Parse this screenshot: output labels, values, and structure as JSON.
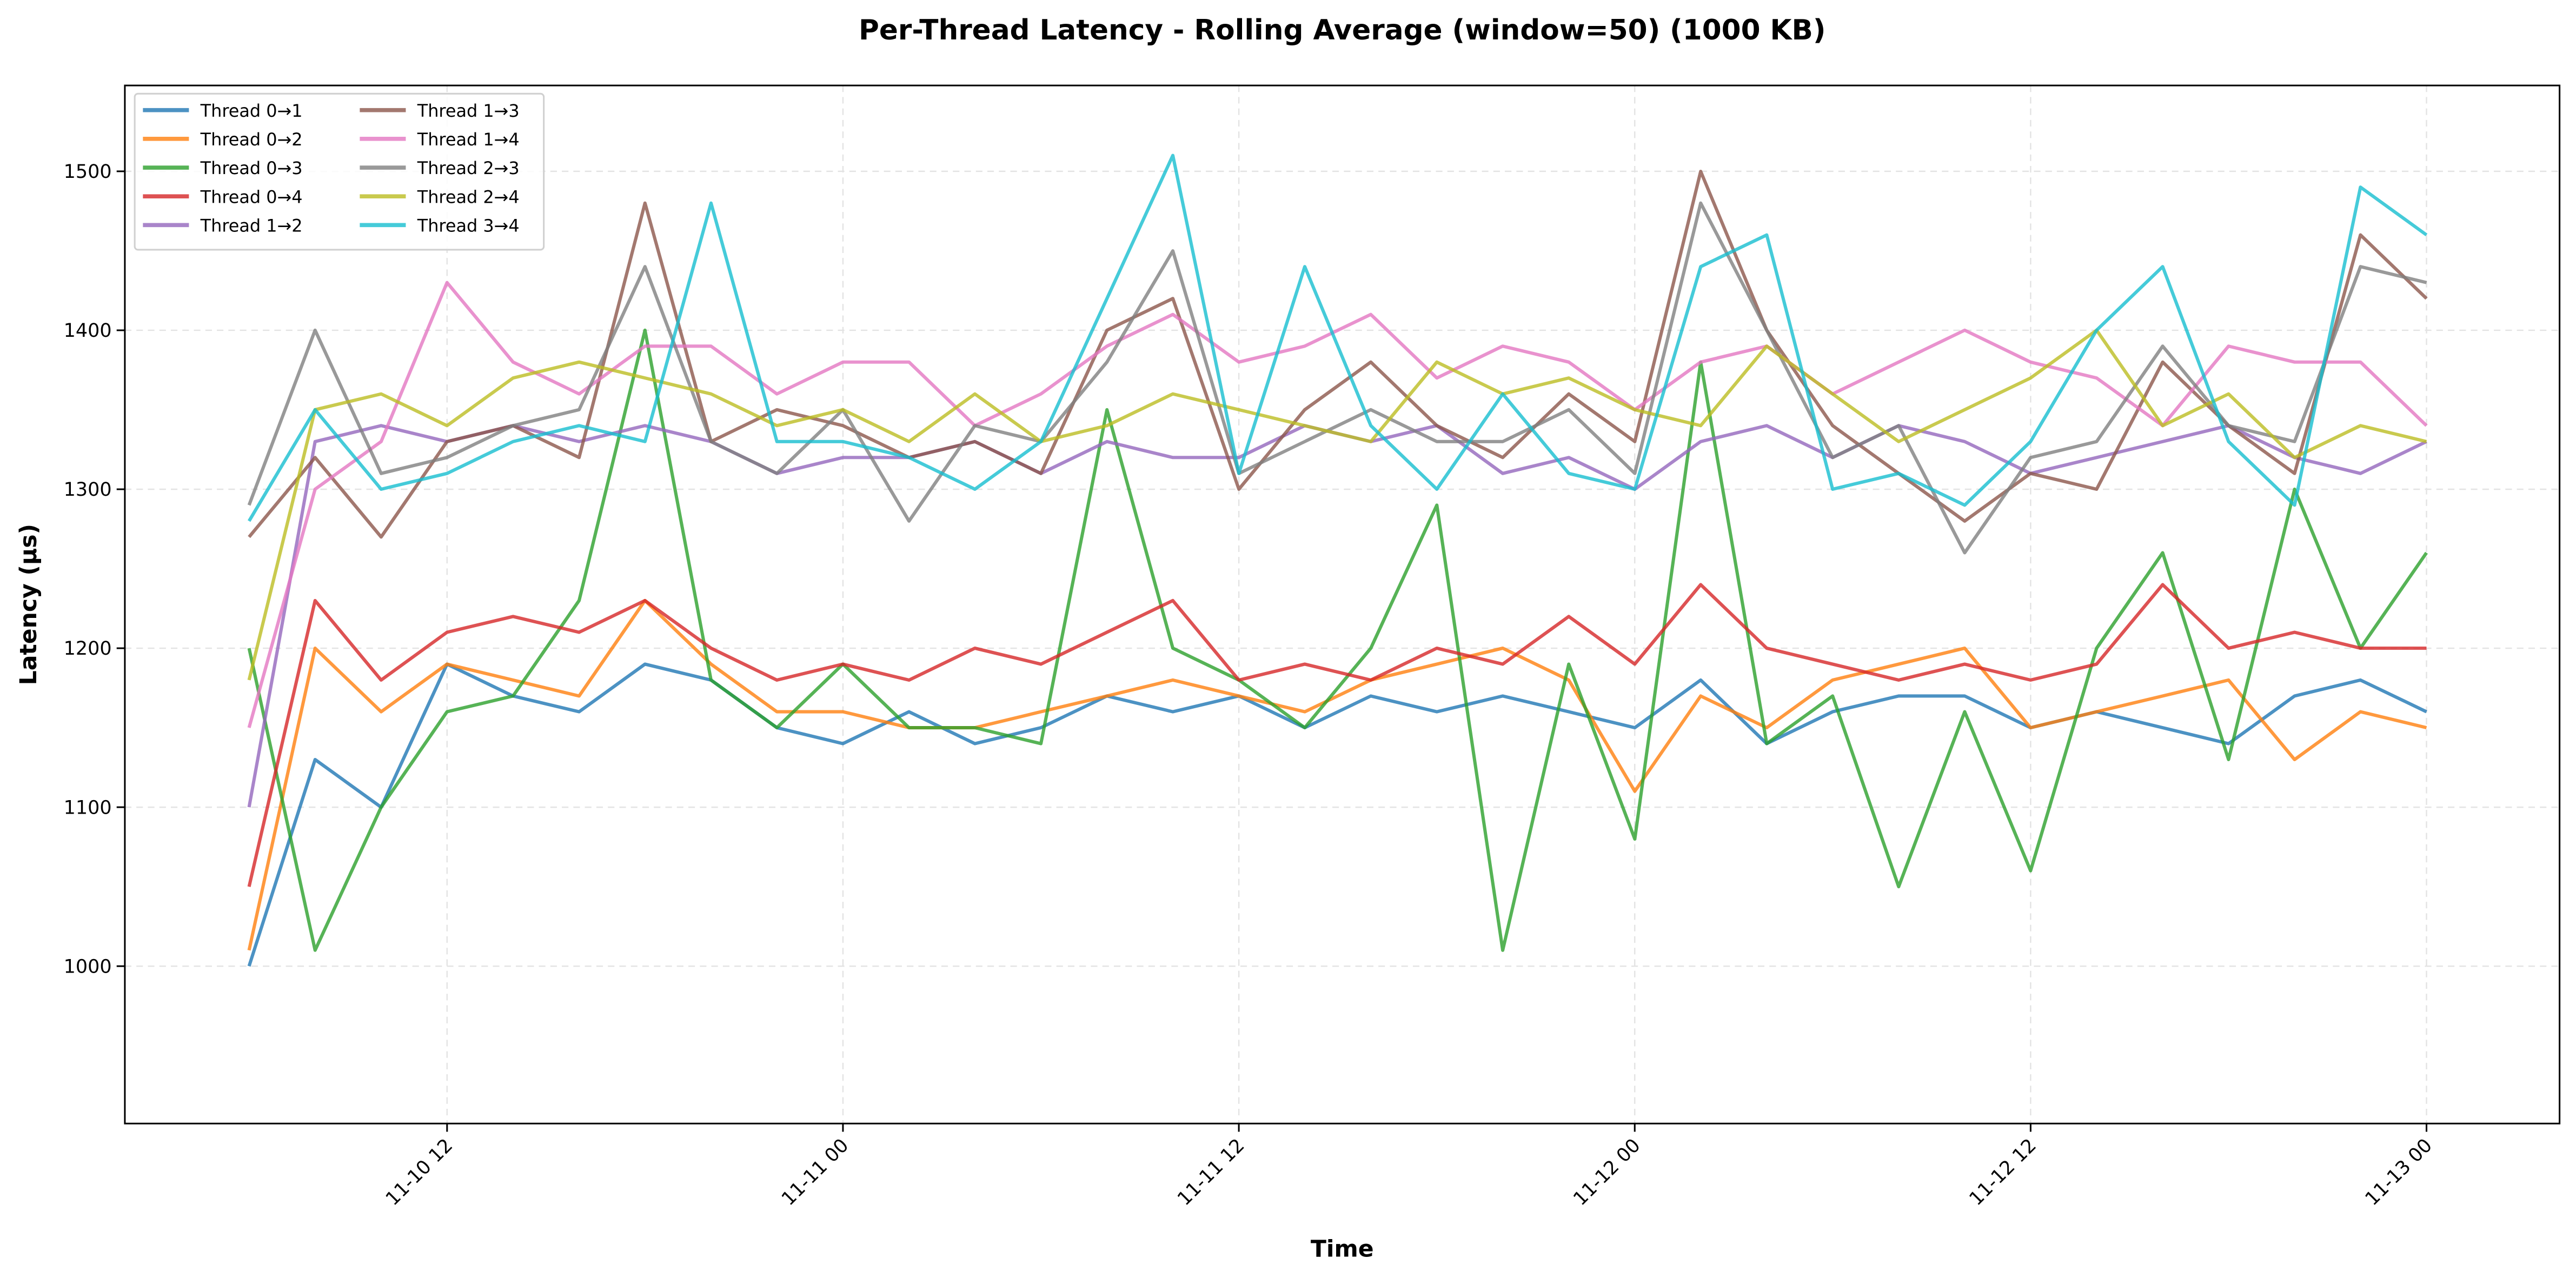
{
  "chart_data": {
    "type": "line",
    "title": "Per-Thread Latency - Rolling Average (window=50) (1000 KB)",
    "xlabel": "Time",
    "ylabel": "Latency (µs)",
    "xlim": [
      "11-10 02:14",
      "11-13 04:02"
    ],
    "ylim": [
      901,
      1554
    ],
    "xticks": [
      "11-10 12",
      "11-11 00",
      "11-11 12",
      "11-12 00",
      "11-12 12",
      "11-13 00"
    ],
    "yticks": [
      1000,
      1100,
      1200,
      1300,
      1400,
      1500
    ],
    "grid": true,
    "legend_position": "top-left",
    "x": [
      "11-10 06:00",
      "11-10 08:00",
      "11-10 10:00",
      "11-10 12:00",
      "11-10 14:00",
      "11-10 16:00",
      "11-10 18:00",
      "11-10 20:00",
      "11-10 22:00",
      "11-11 00:00",
      "11-11 02:00",
      "11-11 04:00",
      "11-11 06:00",
      "11-11 08:00",
      "11-11 10:00",
      "11-11 12:00",
      "11-11 14:00",
      "11-11 16:00",
      "11-11 18:00",
      "11-11 20:00",
      "11-11 22:00",
      "11-12 00:00",
      "11-12 02:00",
      "11-12 04:00",
      "11-12 06:00",
      "11-12 08:00",
      "11-12 10:00",
      "11-12 12:00",
      "11-12 14:00",
      "11-12 16:00",
      "11-12 18:00",
      "11-12 20:00",
      "11-12 22:00",
      "11-13 00:00"
    ],
    "series": [
      {
        "name": "Thread 0→1",
        "color": "#1f77b4",
        "values": [
          1000,
          1130,
          1100,
          1190,
          1170,
          1160,
          1190,
          1180,
          1150,
          1140,
          1160,
          1140,
          1150,
          1170,
          1160,
          1170,
          1150,
          1170,
          1160,
          1170,
          1160,
          1150,
          1180,
          1140,
          1160,
          1170,
          1170,
          1150,
          1160,
          1150,
          1140,
          1170,
          1180,
          1160
        ]
      },
      {
        "name": "Thread 0→2",
        "color": "#ff7f0e",
        "values": [
          1010,
          1200,
          1160,
          1190,
          1180,
          1170,
          1230,
          1190,
          1160,
          1160,
          1150,
          1150,
          1160,
          1170,
          1180,
          1170,
          1160,
          1180,
          1190,
          1200,
          1180,
          1110,
          1170,
          1150,
          1180,
          1190,
          1200,
          1150,
          1160,
          1170,
          1180,
          1130,
          1160,
          1150
        ]
      },
      {
        "name": "Thread 0→3",
        "color": "#2ca02c",
        "values": [
          1200,
          1010,
          1100,
          1160,
          1170,
          1230,
          1400,
          1180,
          1150,
          1190,
          1150,
          1150,
          1140,
          1350,
          1200,
          1180,
          1150,
          1200,
          1290,
          1010,
          1190,
          1080,
          1380,
          1140,
          1170,
          1050,
          1160,
          1060,
          1200,
          1260,
          1130,
          1300,
          1200,
          1260
        ]
      },
      {
        "name": "Thread 0→4",
        "color": "#d62728",
        "values": [
          1050,
          1230,
          1180,
          1210,
          1220,
          1210,
          1230,
          1200,
          1180,
          1190,
          1180,
          1200,
          1190,
          1210,
          1230,
          1180,
          1190,
          1180,
          1200,
          1190,
          1220,
          1190,
          1240,
          1200,
          1190,
          1180,
          1190,
          1180,
          1190,
          1240,
          1200,
          1210,
          1200,
          1200
        ]
      },
      {
        "name": "Thread 1→2",
        "color": "#9467bd",
        "values": [
          1100,
          1330,
          1340,
          1330,
          1340,
          1330,
          1340,
          1330,
          1310,
          1320,
          1320,
          1330,
          1310,
          1330,
          1320,
          1320,
          1340,
          1330,
          1340,
          1310,
          1320,
          1300,
          1330,
          1340,
          1320,
          1340,
          1330,
          1310,
          1320,
          1330,
          1340,
          1320,
          1310,
          1330
        ]
      },
      {
        "name": "Thread 1→3",
        "color": "#8c564b",
        "values": [
          1270,
          1320,
          1270,
          1330,
          1340,
          1320,
          1480,
          1330,
          1350,
          1340,
          1320,
          1330,
          1310,
          1400,
          1420,
          1300,
          1350,
          1380,
          1340,
          1320,
          1360,
          1330,
          1500,
          1400,
          1340,
          1310,
          1280,
          1310,
          1300,
          1380,
          1340,
          1310,
          1460,
          1420
        ]
      },
      {
        "name": "Thread 1→4",
        "color": "#e377c2",
        "values": [
          1150,
          1300,
          1330,
          1430,
          1380,
          1360,
          1390,
          1390,
          1360,
          1380,
          1380,
          1340,
          1360,
          1390,
          1410,
          1380,
          1390,
          1410,
          1370,
          1390,
          1380,
          1350,
          1380,
          1390,
          1360,
          1380,
          1400,
          1380,
          1370,
          1340,
          1390,
          1380,
          1380,
          1340
        ]
      },
      {
        "name": "Thread 2→3",
        "color": "#7f7f7f",
        "values": [
          1290,
          1400,
          1310,
          1320,
          1340,
          1350,
          1440,
          1330,
          1310,
          1350,
          1280,
          1340,
          1330,
          1380,
          1450,
          1310,
          1330,
          1350,
          1330,
          1330,
          1350,
          1310,
          1480,
          1400,
          1320,
          1340,
          1260,
          1320,
          1330,
          1390,
          1340,
          1330,
          1440,
          1430
        ]
      },
      {
        "name": "Thread 2→4",
        "color": "#bcbd22",
        "values": [
          1180,
          1350,
          1360,
          1340,
          1370,
          1380,
          1370,
          1360,
          1340,
          1350,
          1330,
          1360,
          1330,
          1340,
          1360,
          1350,
          1340,
          1330,
          1380,
          1360,
          1370,
          1350,
          1340,
          1390,
          1360,
          1330,
          1350,
          1370,
          1400,
          1340,
          1360,
          1320,
          1340,
          1330
        ]
      },
      {
        "name": "Thread 3→4",
        "color": "#17becf",
        "values": [
          1280,
          1350,
          1300,
          1310,
          1330,
          1340,
          1330,
          1480,
          1330,
          1330,
          1320,
          1300,
          1330,
          1420,
          1510,
          1310,
          1440,
          1340,
          1300,
          1360,
          1310,
          1300,
          1440,
          1460,
          1300,
          1310,
          1290,
          1330,
          1400,
          1440,
          1330,
          1290,
          1490,
          1460
        ]
      }
    ]
  }
}
